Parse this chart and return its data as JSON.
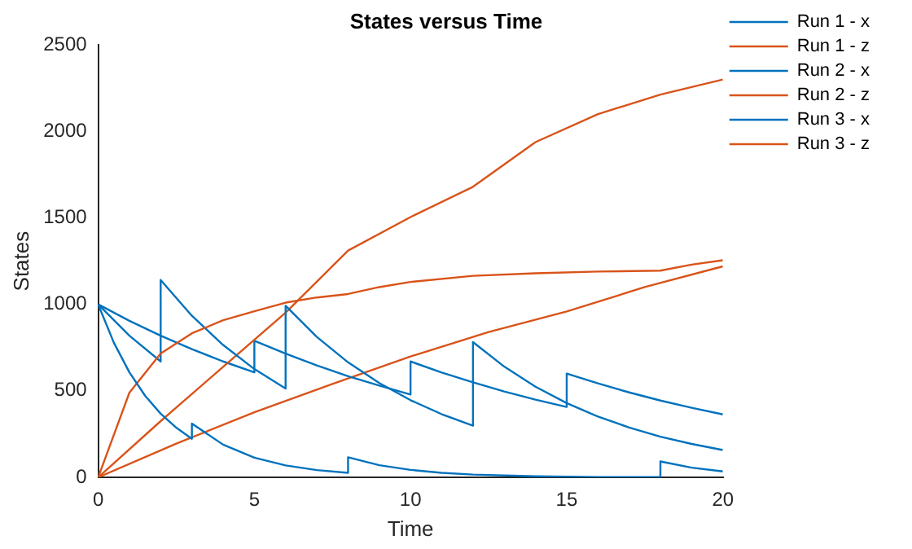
{
  "chart_data": {
    "type": "line",
    "title": "States versus Time",
    "xlabel": "Time",
    "ylabel": "States",
    "xlim": [
      0,
      20
    ],
    "xticks": [
      0,
      5,
      10,
      15,
      20
    ],
    "ylim": [
      0,
      2500
    ],
    "yticks": [
      0,
      500,
      1000,
      1500,
      2000,
      2500
    ],
    "grid": false,
    "legend": "top right",
    "marker": "none",
    "line_style": "solid",
    "series": [
      {
        "name": "Run 1 - x",
        "color": "#0072bd",
        "x": [
          0,
          0.5,
          1,
          1.5,
          2,
          2.5,
          3,
          3,
          4,
          5,
          6,
          7,
          8,
          8,
          9,
          10,
          11,
          12,
          14,
          16,
          18,
          18,
          19,
          20
        ],
        "values": [
          1000,
          779,
          607,
          472,
          368,
          287,
          223,
          311,
          189,
          114,
          69,
          42,
          26,
          116,
          70,
          43,
          26,
          16,
          6,
          2,
          1,
          92,
          56,
          34
        ]
      },
      {
        "name": "Run 1 - z",
        "color": "#d95319",
        "x": [
          0,
          1,
          2,
          3,
          4,
          5,
          6,
          7,
          8,
          9,
          10,
          12,
          14,
          16,
          18,
          19,
          20
        ],
        "values": [
          0,
          490,
          716,
          833,
          908,
          960,
          1010,
          1040,
          1060,
          1100,
          1130,
          1165,
          1180,
          1190,
          1195,
          1230,
          1255
        ]
      },
      {
        "name": "Run 2 - x",
        "color": "#0072bd",
        "x": [
          0,
          1,
          2,
          2,
          3,
          4,
          5,
          6,
          6,
          7,
          8,
          9,
          10,
          11,
          12,
          12,
          13,
          14,
          15,
          16,
          17,
          18,
          19,
          20
        ],
        "values": [
          1000,
          819,
          670,
          1141,
          934,
          765,
          626,
          513,
          992,
          812,
          665,
          545,
          446,
          365,
          299,
          782,
          640,
          524,
          429,
          351,
          288,
          235,
          193,
          158
        ]
      },
      {
        "name": "Run 2 - z",
        "color": "#d95319",
        "x": [
          0,
          2,
          4,
          6,
          8,
          10,
          12,
          14,
          16,
          18,
          20
        ],
        "values": [
          0,
          325,
          639,
          952,
          1311,
          1505,
          1680,
          1938,
          2100,
          2213,
          2300
        ]
      },
      {
        "name": "Run 3 - x",
        "color": "#0072bd",
        "x": [
          0,
          1,
          2,
          3,
          4,
          5,
          5,
          6,
          7,
          8,
          9,
          10,
          10,
          11,
          12,
          13,
          14,
          15,
          15,
          16,
          17,
          18,
          19,
          20
        ],
        "values": [
          1000,
          905,
          819,
          741,
          670,
          607,
          790,
          715,
          647,
          585,
          530,
          479,
          670,
          606,
          549,
          496,
          449,
          407,
          600,
          543,
          491,
          444,
          402,
          364
        ]
      },
      {
        "name": "Run 3 - z",
        "color": "#d95319",
        "x": [
          0,
          2.5,
          5,
          7.5,
          10,
          12.5,
          15,
          17.5,
          20
        ],
        "values": [
          0,
          195,
          376,
          540,
          699,
          840,
          959,
          1100,
          1220
        ]
      }
    ]
  }
}
